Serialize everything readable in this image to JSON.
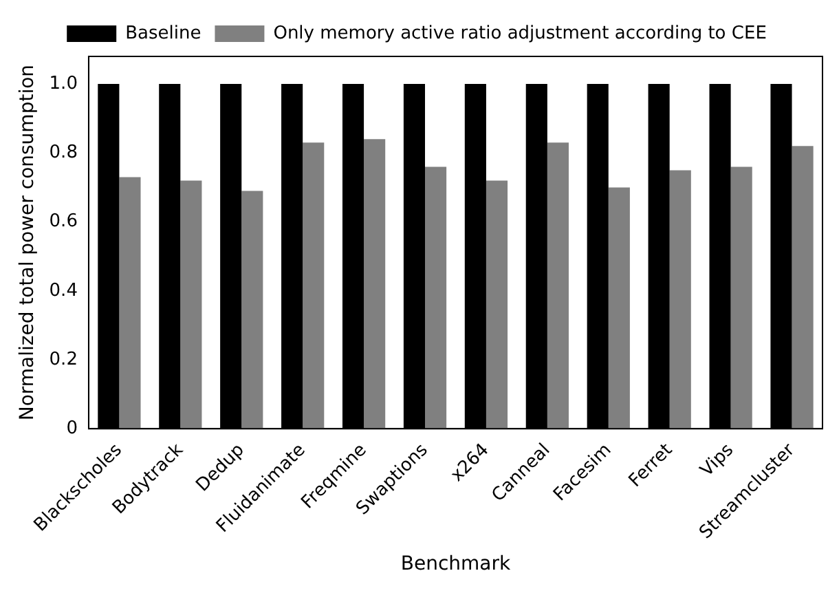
{
  "chart_data": {
    "type": "bar",
    "xlabel": "Benchmark",
    "ylabel": "Normalized total power consumption",
    "categories": [
      "Blackscholes",
      "Bodytrack",
      "Dedup",
      "Fluidanimate",
      "Freqmine",
      "Swaptions",
      "x264",
      "Canneal",
      "Facesim",
      "Ferret",
      "Vips",
      "Streamcluster"
    ],
    "series": [
      {
        "name": "Baseline",
        "color": "#000000",
        "values": [
          1,
          1,
          1,
          1,
          1,
          1,
          1,
          1,
          1,
          1,
          1,
          1
        ]
      },
      {
        "name": "Only memory active ratio adjustment according to CEE",
        "color": "#808080",
        "values": [
          0.73,
          0.72,
          0.69,
          0.83,
          0.84,
          0.76,
          0.72,
          0.83,
          0.7,
          0.75,
          0.76,
          0.82
        ]
      }
    ],
    "ylim": [
      0,
      1.08
    ],
    "yticks": [
      0,
      0.2,
      0.4,
      0.6,
      0.8,
      {
        "value": 1,
        "label": "1.0"
      }
    ],
    "grid": false,
    "legend": "top"
  }
}
